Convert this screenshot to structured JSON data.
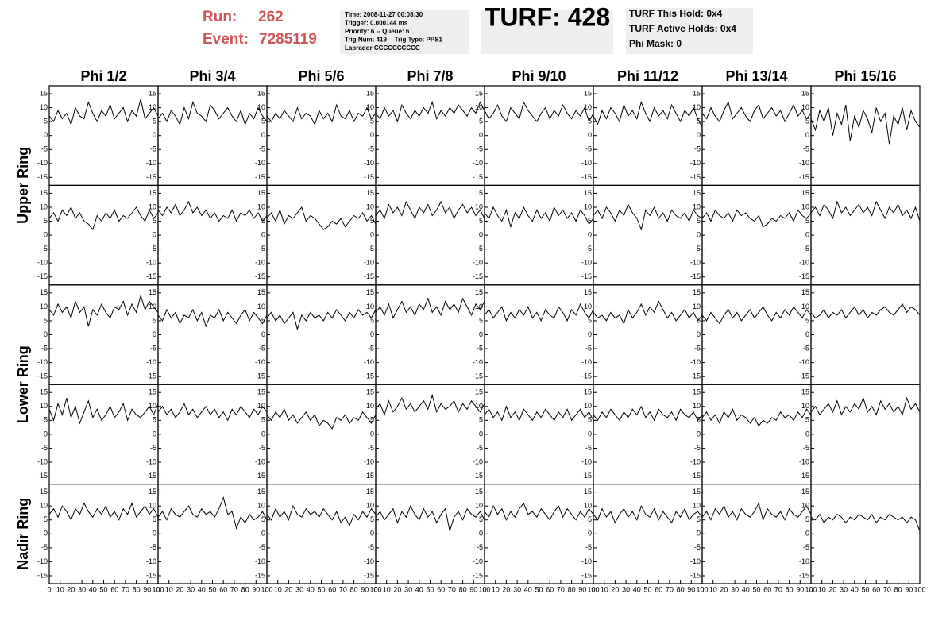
{
  "header": {
    "run_label": "Run:",
    "run": "262",
    "event_label": "Event:",
    "event": "7285119",
    "info": [
      "Time: 2008-11-27 00:08:30",
      "Trigger: 0.000144 ms",
      "Priority: 6 -- Queue: 6",
      "Trig Num: 419 -- Trig Type: PPS1",
      "Labrador CCCCCCCCCC"
    ],
    "turf": "TURF: 428",
    "turf_info": [
      "TURF This Hold: 0x4",
      "TURF Active Holds: 0x4",
      "Phi Mask: 0"
    ]
  },
  "chart_data": {
    "type": "line",
    "color": "#000000",
    "columns": [
      "Phi 1/2",
      "Phi 3/4",
      "Phi 5/6",
      "Phi 7/8",
      "Phi 9/10",
      "Phi 11/12",
      "Phi 13/14",
      "Phi 15/16"
    ],
    "row_labels": [
      "Upper Ring",
      "Lower Ring",
      "Nadir Ring"
    ],
    "xlim": [
      0,
      100
    ],
    "xticks": [
      0,
      10,
      20,
      30,
      40,
      50,
      60,
      70,
      80,
      90,
      100
    ],
    "ylim": [
      -17,
      17
    ],
    "yticks": [
      15,
      10,
      5,
      0,
      -5,
      -10,
      -15
    ],
    "x": [
      0,
      4,
      8,
      12,
      16,
      20,
      24,
      28,
      32,
      36,
      40,
      44,
      48,
      52,
      56,
      60,
      64,
      68,
      72,
      76,
      80,
      84,
      88,
      92,
      96,
      100
    ],
    "series": [
      {
        "values": [
          7,
          5,
          9,
          6,
          8,
          4,
          10,
          7,
          6,
          12,
          8,
          5,
          9,
          7,
          11,
          6,
          8,
          10,
          5,
          9,
          7,
          13,
          6,
          8,
          10,
          7
        ]
      },
      {
        "values": [
          6,
          8,
          5,
          9,
          7,
          4,
          10,
          6,
          12,
          8,
          7,
          5,
          11,
          9,
          6,
          8,
          10,
          7,
          5,
          9,
          4,
          8,
          6,
          10,
          7,
          5
        ]
      },
      {
        "values": [
          7,
          5,
          8,
          6,
          9,
          7,
          5,
          10,
          6,
          8,
          7,
          4,
          9,
          6,
          8,
          5,
          11,
          7,
          6,
          9,
          5,
          8,
          7,
          10,
          6,
          8
        ]
      },
      {
        "values": [
          8,
          6,
          10,
          7,
          9,
          5,
          11,
          8,
          6,
          9,
          7,
          10,
          8,
          12,
          6,
          9,
          7,
          10,
          8,
          11,
          9,
          7,
          10,
          8,
          12,
          9
        ]
      },
      {
        "values": [
          9,
          6,
          8,
          11,
          7,
          5,
          10,
          8,
          6,
          12,
          9,
          7,
          5,
          8,
          10,
          6,
          9,
          7,
          11,
          8,
          6,
          9,
          7,
          10,
          5,
          8
        ]
      },
      {
        "values": [
          7,
          4,
          9,
          6,
          10,
          8,
          5,
          11,
          7,
          9,
          6,
          12,
          8,
          5,
          10,
          7,
          9,
          6,
          11,
          8,
          5,
          9,
          7,
          10,
          6,
          3
        ]
      },
      {
        "values": [
          8,
          6,
          10,
          7,
          5,
          9,
          12,
          6,
          8,
          10,
          7,
          5,
          9,
          11,
          6,
          8,
          10,
          7,
          9,
          5,
          8,
          11,
          7,
          9,
          6,
          8
        ]
      },
      {
        "values": [
          6,
          2,
          9,
          5,
          10,
          0,
          8,
          4,
          11,
          -2,
          7,
          3,
          9,
          6,
          1,
          10,
          5,
          8,
          -3,
          7,
          4,
          10,
          2,
          9,
          5,
          3
        ]
      },
      {
        "values": [
          6,
          8,
          5,
          9,
          7,
          10,
          6,
          8,
          5,
          4,
          2,
          7,
          5,
          8,
          6,
          9,
          5,
          7,
          6,
          8,
          10,
          7,
          5,
          9,
          6,
          8
        ]
      },
      {
        "values": [
          9,
          7,
          10,
          8,
          11,
          7,
          9,
          12,
          8,
          10,
          7,
          9,
          6,
          8,
          5,
          7,
          6,
          9,
          5,
          8,
          7,
          9,
          6,
          8,
          5,
          7
        ]
      },
      {
        "values": [
          6,
          8,
          5,
          9,
          4,
          7,
          6,
          8,
          10,
          5,
          7,
          6,
          4,
          2,
          3,
          5,
          4,
          6,
          3,
          5,
          7,
          6,
          8,
          5,
          7,
          4
        ]
      },
      {
        "values": [
          7,
          9,
          6,
          11,
          8,
          10,
          7,
          12,
          9,
          6,
          10,
          8,
          11,
          7,
          9,
          12,
          8,
          10,
          6,
          9,
          11,
          8,
          10,
          7,
          9,
          6
        ]
      },
      {
        "values": [
          8,
          6,
          10,
          7,
          5,
          9,
          3,
          8,
          6,
          10,
          7,
          5,
          9,
          6,
          8,
          5,
          10,
          7,
          9,
          6,
          8,
          5,
          9,
          7,
          4,
          6
        ]
      },
      {
        "values": [
          7,
          9,
          6,
          10,
          8,
          5,
          9,
          7,
          11,
          8,
          6,
          2,
          9,
          7,
          10,
          6,
          8,
          5,
          9,
          7,
          6,
          8,
          5,
          9,
          7,
          6
        ]
      },
      {
        "values": [
          6,
          8,
          5,
          9,
          7,
          6,
          8,
          5,
          9,
          7,
          8,
          6,
          5,
          7,
          3,
          4,
          6,
          5,
          7,
          6,
          8,
          5,
          9,
          7,
          6,
          8
        ]
      },
      {
        "values": [
          8,
          10,
          7,
          11,
          9,
          6,
          12,
          8,
          10,
          7,
          9,
          11,
          8,
          10,
          7,
          12,
          9,
          6,
          10,
          8,
          11,
          7,
          9,
          6,
          10,
          5
        ]
      },
      {
        "values": [
          9,
          7,
          11,
          8,
          10,
          6,
          12,
          8,
          10,
          3,
          9,
          7,
          11,
          8,
          6,
          10,
          9,
          12,
          7,
          11,
          8,
          14,
          9,
          12,
          10,
          8
        ]
      },
      {
        "values": [
          7,
          5,
          9,
          6,
          8,
          4,
          7,
          6,
          9,
          5,
          8,
          3,
          7,
          6,
          9,
          5,
          8,
          6,
          4,
          7,
          9,
          5,
          8,
          6,
          4,
          7
        ]
      },
      {
        "values": [
          6,
          8,
          5,
          7,
          4,
          6,
          8,
          2,
          7,
          5,
          8,
          6,
          7,
          5,
          8,
          6,
          9,
          7,
          5,
          8,
          6,
          9,
          7,
          8,
          6,
          9
        ]
      },
      {
        "values": [
          8,
          10,
          7,
          11,
          6,
          9,
          12,
          8,
          10,
          7,
          11,
          9,
          13,
          8,
          10,
          7,
          12,
          9,
          11,
          8,
          13,
          10,
          7,
          11,
          9,
          12
        ]
      },
      {
        "values": [
          7,
          9,
          6,
          8,
          10,
          5,
          8,
          6,
          9,
          7,
          10,
          6,
          8,
          5,
          9,
          7,
          6,
          10,
          8,
          5,
          9,
          7,
          11,
          8,
          6,
          9
        ]
      },
      {
        "values": [
          8,
          6,
          7,
          5,
          8,
          6,
          7,
          4,
          9,
          6,
          8,
          11,
          7,
          10,
          8,
          12,
          9,
          6,
          8,
          5,
          7,
          9,
          6,
          8,
          5,
          7
        ]
      },
      {
        "values": [
          7,
          5,
          8,
          6,
          4,
          7,
          9,
          6,
          8,
          5,
          7,
          9,
          6,
          8,
          10,
          7,
          5,
          8,
          6,
          9,
          7,
          10,
          8,
          6,
          9,
          7
        ]
      },
      {
        "values": [
          8,
          6,
          7,
          9,
          6,
          8,
          7,
          9,
          6,
          8,
          10,
          7,
          9,
          6,
          8,
          7,
          9,
          10,
          8,
          7,
          9,
          11,
          8,
          10,
          9,
          7
        ]
      },
      {
        "values": [
          9,
          5,
          11,
          7,
          13,
          6,
          10,
          4,
          8,
          12,
          6,
          9,
          5,
          7,
          10,
          6,
          8,
          11,
          5,
          9,
          7,
          6,
          8,
          10,
          7,
          11
        ]
      },
      {
        "values": [
          8,
          10,
          7,
          9,
          6,
          8,
          11,
          7,
          9,
          6,
          8,
          10,
          7,
          9,
          6,
          8,
          5,
          9,
          7,
          10,
          8,
          6,
          9,
          7,
          10,
          8
        ]
      },
      {
        "values": [
          7,
          5,
          8,
          6,
          9,
          5,
          7,
          4,
          6,
          8,
          5,
          7,
          3,
          5,
          4,
          2,
          6,
          5,
          7,
          4,
          6,
          5,
          8,
          6,
          4,
          7
        ]
      },
      {
        "values": [
          9,
          11,
          7,
          12,
          8,
          10,
          13,
          9,
          11,
          8,
          10,
          12,
          9,
          14,
          8,
          11,
          9,
          10,
          12,
          8,
          11,
          9,
          12,
          10,
          8,
          11
        ]
      },
      {
        "values": [
          7,
          9,
          6,
          8,
          5,
          10,
          6,
          8,
          5,
          9,
          7,
          5,
          8,
          6,
          9,
          7,
          5,
          8,
          6,
          9,
          5,
          7,
          9,
          6,
          8,
          5
        ]
      },
      {
        "values": [
          7,
          5,
          8,
          6,
          9,
          7,
          5,
          8,
          6,
          9,
          7,
          10,
          6,
          8,
          5,
          9,
          7,
          6,
          8,
          5,
          9,
          7,
          6,
          8,
          5,
          7
        ]
      },
      {
        "values": [
          6,
          8,
          5,
          7,
          4,
          8,
          6,
          9,
          5,
          7,
          6,
          4,
          6,
          3,
          5,
          4,
          6,
          5,
          8,
          6,
          7,
          5,
          8,
          6,
          9,
          7
        ]
      },
      {
        "values": [
          8,
          10,
          7,
          9,
          11,
          8,
          12,
          7,
          10,
          8,
          11,
          9,
          13,
          8,
          10,
          7,
          12,
          9,
          11,
          8,
          10,
          7,
          13,
          9,
          11,
          8
        ]
      },
      {
        "values": [
          7,
          9,
          6,
          10,
          8,
          5,
          9,
          7,
          11,
          8,
          6,
          9,
          7,
          10,
          6,
          8,
          5,
          9,
          7,
          11,
          6,
          8,
          10,
          7,
          9,
          6
        ]
      },
      {
        "values": [
          6,
          8,
          5,
          9,
          7,
          6,
          8,
          10,
          7,
          6,
          9,
          7,
          8,
          6,
          9,
          13,
          7,
          8,
          2,
          6,
          4,
          7,
          5,
          6,
          8,
          5
        ]
      },
      {
        "values": [
          7,
          5,
          9,
          6,
          8,
          5,
          10,
          7,
          6,
          9,
          7,
          8,
          6,
          9,
          7,
          5,
          8,
          4,
          6,
          3,
          7,
          5,
          8,
          6,
          9,
          7
        ]
      },
      {
        "values": [
          6,
          8,
          5,
          7,
          9,
          4,
          8,
          6,
          10,
          7,
          5,
          9,
          6,
          8,
          4,
          7,
          9,
          1,
          6,
          8,
          5,
          9,
          7,
          6,
          8,
          5
        ]
      },
      {
        "values": [
          8,
          6,
          10,
          7,
          9,
          5,
          8,
          6,
          9,
          11,
          7,
          8,
          6,
          9,
          7,
          5,
          8,
          10,
          6,
          9,
          7,
          5,
          8,
          6,
          9,
          7
        ]
      },
      {
        "values": [
          7,
          5,
          9,
          6,
          8,
          4,
          7,
          9,
          6,
          8,
          5,
          10,
          7,
          6,
          9,
          5,
          8,
          6,
          4,
          8,
          6,
          9,
          5,
          7,
          8,
          6
        ]
      },
      {
        "values": [
          6,
          8,
          5,
          9,
          7,
          10,
          6,
          8,
          5,
          9,
          7,
          6,
          8,
          11,
          5,
          9,
          7,
          6,
          8,
          5,
          9,
          7,
          6,
          8,
          10,
          7
        ]
      },
      {
        "values": [
          6,
          5,
          7,
          4,
          6,
          5,
          7,
          6,
          4,
          6,
          5,
          7,
          6,
          5,
          7,
          4,
          6,
          5,
          7,
          6,
          5,
          6,
          4,
          6,
          5,
          1
        ]
      }
    ]
  }
}
